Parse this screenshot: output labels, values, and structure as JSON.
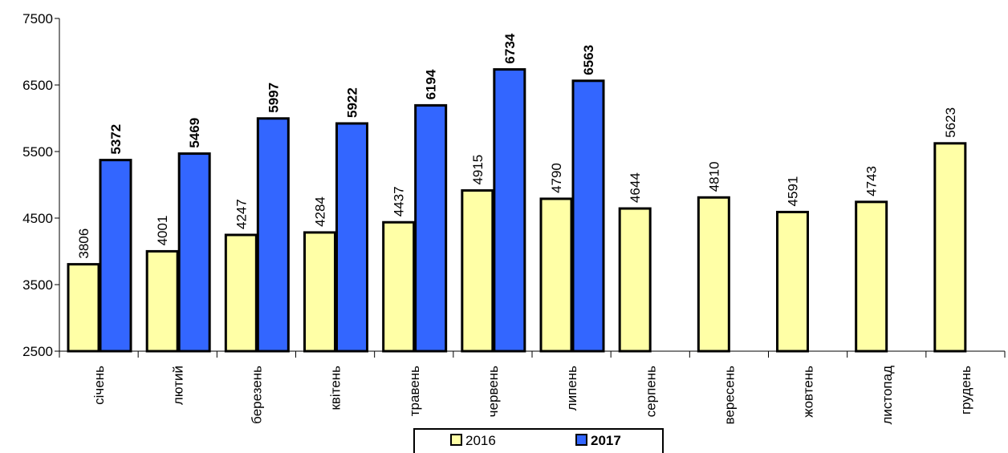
{
  "chart_data": {
    "type": "bar",
    "categories": [
      "січень",
      "лютий",
      "березень",
      "квітень",
      "травень",
      "червень",
      "липень",
      "серпень",
      "вересень",
      "жовтень",
      "листопад",
      "грудень"
    ],
    "series": [
      {
        "name": "2016",
        "color": "#ffffa6",
        "values": [
          3806,
          4001,
          4247,
          4284,
          4437,
          4915,
          4790,
          4644,
          4810,
          4591,
          4743,
          5623
        ]
      },
      {
        "name": "2017",
        "color": "#3366ff",
        "values": [
          5372,
          5469,
          5997,
          5922,
          6194,
          6734,
          6563,
          null,
          null,
          null,
          null,
          null
        ]
      }
    ],
    "title": "",
    "xlabel": "",
    "ylabel": "",
    "ylim": [
      2500,
      7500
    ],
    "yticks": [
      2500,
      3500,
      4500,
      5500,
      6500,
      7500
    ],
    "grid": false,
    "legend_position": "bottom"
  }
}
